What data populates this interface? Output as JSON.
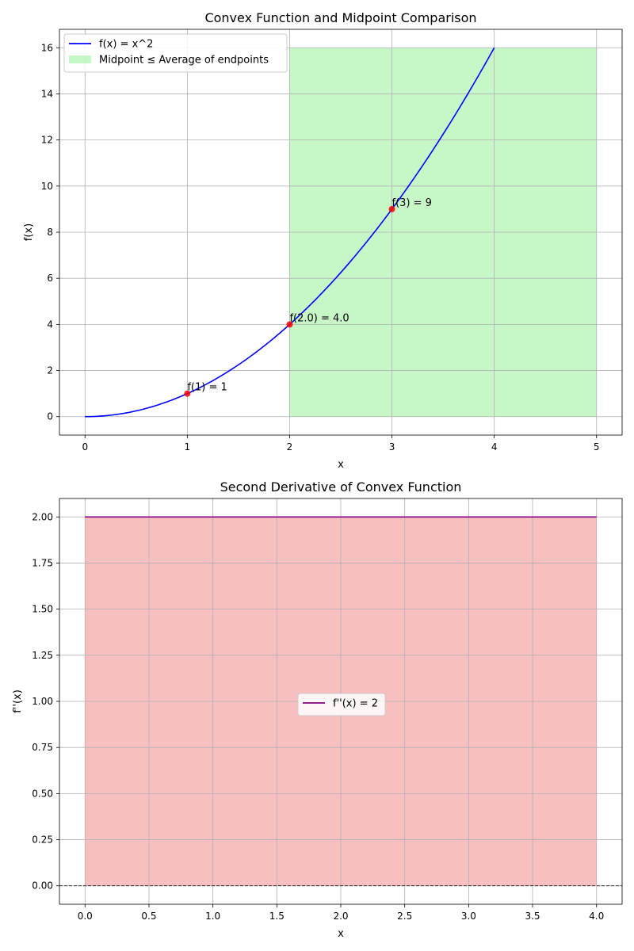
{
  "chart_data": [
    {
      "type": "line",
      "title": "Convex Function and Midpoint Comparison",
      "xlabel": "x",
      "ylabel": "f(x)",
      "xlim": [
        -0.25,
        5.25
      ],
      "ylim": [
        -0.8,
        16.8
      ],
      "xticks": [
        0,
        1,
        2,
        3,
        4,
        5
      ],
      "yticks": [
        0,
        2,
        4,
        6,
        8,
        10,
        12,
        14,
        16
      ],
      "grid": true,
      "legend_position": "upper-left",
      "series": [
        {
          "name": "f(x) = x^2",
          "color": "#0000ff",
          "x": [
            0,
            0.5,
            1,
            1.5,
            2,
            2.5,
            3,
            3.5,
            4
          ],
          "y": [
            0,
            0.25,
            1,
            2.25,
            4,
            6.25,
            9,
            12.25,
            16
          ]
        }
      ],
      "fill": {
        "name": "Midpoint ≤ Average of endpoints",
        "color": "#90ee90",
        "x": [
          2,
          5
        ],
        "y": [
          0,
          16
        ]
      },
      "points": [
        {
          "x": 1,
          "y": 1,
          "label": "f(1) = 1"
        },
        {
          "x": 2,
          "y": 4,
          "label": "f(2.0) = 4.0"
        },
        {
          "x": 3,
          "y": 9,
          "label": "f(3) = 9"
        }
      ],
      "point_color": "#ff0000"
    },
    {
      "type": "line",
      "title": "Second Derivative of Convex Function",
      "xlabel": "x",
      "ylabel": "f''(x)",
      "xlim": [
        -0.2,
        4.2
      ],
      "ylim": [
        -0.1,
        2.1
      ],
      "xticks": [
        0.0,
        0.5,
        1.0,
        1.5,
        2.0,
        2.5,
        3.0,
        3.5,
        4.0
      ],
      "yticks": [
        0.0,
        0.25,
        0.5,
        0.75,
        1.0,
        1.25,
        1.5,
        1.75,
        2.0
      ],
      "grid": true,
      "legend_position": "center",
      "series": [
        {
          "name": "f''(x) = 2",
          "color": "#800080",
          "x": [
            0,
            4
          ],
          "y": [
            2,
            2
          ]
        }
      ],
      "fill": {
        "color": "#f08080",
        "x": [
          0,
          4
        ],
        "y": [
          0,
          2
        ]
      },
      "hline": {
        "y": 0,
        "style": "dashed",
        "color": "#000000"
      }
    }
  ]
}
